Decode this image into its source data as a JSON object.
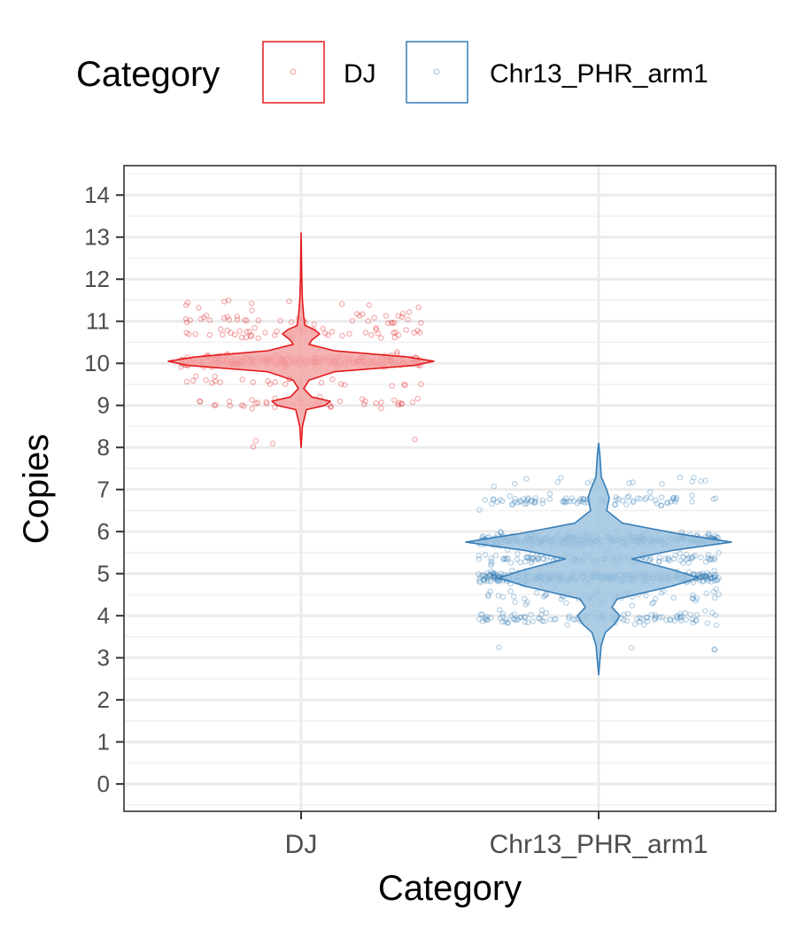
{
  "chart_data": {
    "type": "violin",
    "xlabel": "Category",
    "ylabel": "Copies",
    "categories": [
      "DJ",
      "Chr13_PHR_arm1"
    ],
    "yticks": [
      0,
      1,
      2,
      3,
      4,
      5,
      6,
      7,
      8,
      9,
      10,
      11,
      12,
      13,
      14
    ],
    "ylim": [
      -0.65,
      14.7
    ],
    "grid": true,
    "legend": {
      "title": "Category",
      "position": "top",
      "entries": [
        "DJ",
        "Chr13_PHR_arm1"
      ]
    },
    "series": [
      {
        "name": "DJ",
        "color": "#E41A1C",
        "fill": "#F3A5A6",
        "range": [
          8.0,
          13.1
        ],
        "main_value": 10.05,
        "density": [
          [
            8.0,
            0.0
          ],
          [
            8.5,
            0.01
          ],
          [
            8.9,
            0.04
          ],
          [
            9.0,
            0.18
          ],
          [
            9.1,
            0.22
          ],
          [
            9.2,
            0.08
          ],
          [
            9.4,
            0.02
          ],
          [
            9.6,
            0.06
          ],
          [
            9.8,
            0.25
          ],
          [
            9.95,
            0.85
          ],
          [
            10.05,
            1.0
          ],
          [
            10.15,
            0.8
          ],
          [
            10.3,
            0.25
          ],
          [
            10.45,
            0.06
          ],
          [
            10.55,
            0.08
          ],
          [
            10.7,
            0.14
          ],
          [
            10.8,
            0.1
          ],
          [
            10.9,
            0.03
          ],
          [
            11.1,
            0.02
          ],
          [
            11.5,
            0.01
          ],
          [
            12.0,
            0.005
          ],
          [
            13.1,
            0.0
          ]
        ],
        "points_levels": [
          {
            "y": 9.05,
            "n": 40
          },
          {
            "y": 10.05,
            "n": 260
          },
          {
            "y": 10.7,
            "n": 50
          },
          {
            "y": 11.05,
            "n": 40
          },
          {
            "y": 9.55,
            "n": 25
          },
          {
            "y": 11.4,
            "n": 10
          },
          {
            "y": 8.1,
            "n": 4
          }
        ]
      },
      {
        "name": "Chr13_PHR_arm1",
        "color": "#377EB8",
        "fill": "#9FC4E1",
        "range": [
          2.6,
          8.1
        ],
        "main_value": 5.8,
        "density": [
          [
            2.6,
            0.0
          ],
          [
            3.3,
            0.02
          ],
          [
            3.6,
            0.05
          ],
          [
            3.8,
            0.12
          ],
          [
            4.0,
            0.16
          ],
          [
            4.2,
            0.1
          ],
          [
            4.4,
            0.14
          ],
          [
            4.7,
            0.55
          ],
          [
            4.9,
            0.75
          ],
          [
            5.1,
            0.55
          ],
          [
            5.35,
            0.25
          ],
          [
            5.55,
            0.55
          ],
          [
            5.75,
            1.0
          ],
          [
            5.95,
            0.6
          ],
          [
            6.2,
            0.18
          ],
          [
            6.5,
            0.06
          ],
          [
            6.8,
            0.08
          ],
          [
            7.0,
            0.06
          ],
          [
            7.3,
            0.02
          ],
          [
            7.8,
            0.01
          ],
          [
            8.1,
            0.0
          ]
        ],
        "points_levels": [
          {
            "y": 3.95,
            "n": 110
          },
          {
            "y": 4.9,
            "n": 320
          },
          {
            "y": 5.8,
            "n": 360
          },
          {
            "y": 6.75,
            "n": 90
          },
          {
            "y": 5.35,
            "n": 120
          },
          {
            "y": 4.45,
            "n": 60
          },
          {
            "y": 7.2,
            "n": 15
          },
          {
            "y": 3.3,
            "n": 4
          }
        ]
      }
    ]
  }
}
